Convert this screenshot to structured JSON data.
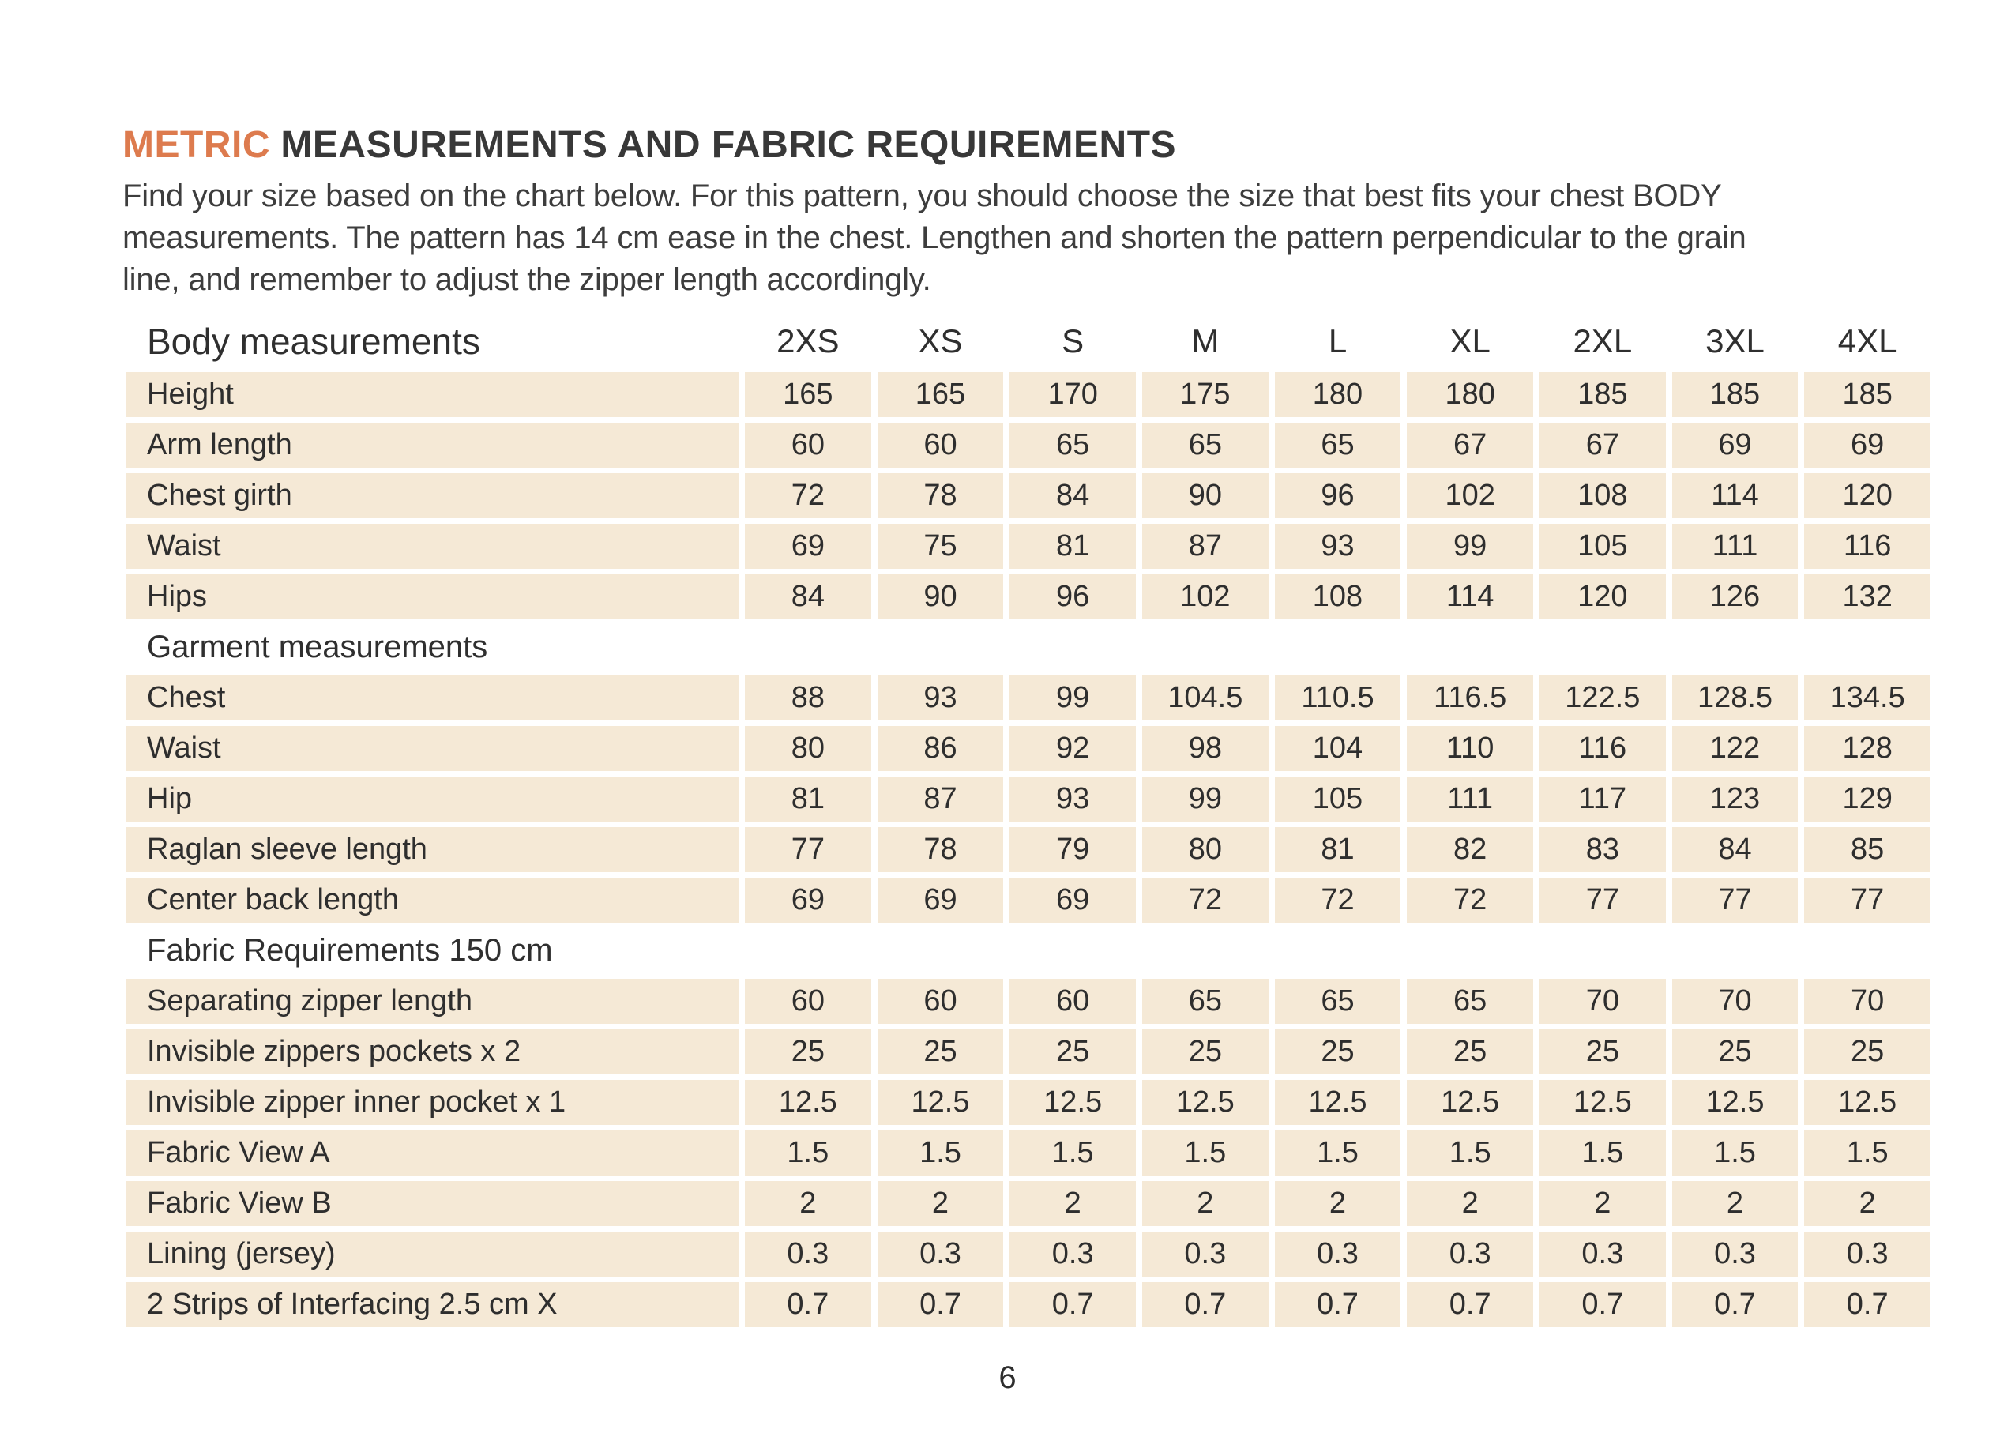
{
  "colors": {
    "accent_orange": "#DD7B4E",
    "row_beige": "#F5E9D6",
    "text_dark": "#333333"
  },
  "header": {
    "title_highlight": "METRIC",
    "title_rest": "MEASUREMENTS AND FABRIC REQUIREMENTS"
  },
  "intro": {
    "lines": [
      "Find your size based on the chart below. For this pattern, you should choose the size that best fits your chest BODY",
      "measurements. The pattern has 14 cm ease in the chest. Lengthen and shorten the pattern perpendicular to the grain",
      "line, and remember to adjust the zipper length accordingly."
    ]
  },
  "table": {
    "header_label": "Body measurements",
    "sizes": [
      "2XS",
      "XS",
      "S",
      "M",
      "L",
      "XL",
      "2XL",
      "3XL",
      "4XL"
    ],
    "groups": [
      {
        "heading": "",
        "rows": [
          {
            "label": "Height",
            "values": [
              "165",
              "165",
              "170",
              "175",
              "180",
              "180",
              "185",
              "185",
              "185"
            ]
          },
          {
            "label": "Arm length",
            "values": [
              "60",
              "60",
              "65",
              "65",
              "65",
              "67",
              "67",
              "69",
              "69"
            ]
          },
          {
            "label": "Chest girth",
            "values": [
              "72",
              "78",
              "84",
              "90",
              "96",
              "102",
              "108",
              "114",
              "120"
            ]
          },
          {
            "label": "Waist",
            "values": [
              "69",
              "75",
              "81",
              "87",
              "93",
              "99",
              "105",
              "111",
              "116"
            ]
          },
          {
            "label": "Hips",
            "values": [
              "84",
              "90",
              "96",
              "102",
              "108",
              "114",
              "120",
              "126",
              "132"
            ]
          }
        ]
      },
      {
        "heading": "Garment measurements",
        "rows": [
          {
            "label": "Chest",
            "values": [
              "88",
              "93",
              "99",
              "104.5",
              "110.5",
              "116.5",
              "122.5",
              "128.5",
              "134.5"
            ]
          },
          {
            "label": "Waist",
            "values": [
              "80",
              "86",
              "92",
              "98",
              "104",
              "110",
              "116",
              "122",
              "128"
            ]
          },
          {
            "label": "Hip",
            "values": [
              "81",
              "87",
              "93",
              "99",
              "105",
              "111",
              "117",
              "123",
              "129"
            ]
          },
          {
            "label": "Raglan sleeve length",
            "values": [
              "77",
              "78",
              "79",
              "80",
              "81",
              "82",
              "83",
              "84",
              "85"
            ]
          },
          {
            "label": "Center back length",
            "values": [
              "69",
              "69",
              "69",
              "72",
              "72",
              "72",
              "77",
              "77",
              "77"
            ]
          }
        ]
      },
      {
        "heading": "Fabric Requirements 150 cm",
        "rows": [
          {
            "label": "Separating zipper length",
            "values": [
              "60",
              "60",
              "60",
              "65",
              "65",
              "65",
              "70",
              "70",
              "70"
            ]
          },
          {
            "label": "Invisible zippers pockets x 2",
            "values": [
              "25",
              "25",
              "25",
              "25",
              "25",
              "25",
              "25",
              "25",
              "25"
            ]
          },
          {
            "label": "Invisible zipper inner pocket x 1",
            "values": [
              "12.5",
              "12.5",
              "12.5",
              "12.5",
              "12.5",
              "12.5",
              "12.5",
              "12.5",
              "12.5"
            ]
          },
          {
            "label": "Fabric View A",
            "values": [
              "1.5",
              "1.5",
              "1.5",
              "1.5",
              "1.5",
              "1.5",
              "1.5",
              "1.5",
              "1.5"
            ]
          },
          {
            "label": "Fabric View B",
            "values": [
              "2",
              "2",
              "2",
              "2",
              "2",
              "2",
              "2",
              "2",
              "2"
            ]
          },
          {
            "label": "Lining (jersey)",
            "values": [
              "0.3",
              "0.3",
              "0.3",
              "0.3",
              "0.3",
              "0.3",
              "0.3",
              "0.3",
              "0.3"
            ]
          },
          {
            "label": "2 Strips of Interfacing 2.5 cm X",
            "values": [
              "0.7",
              "0.7",
              "0.7",
              "0.7",
              "0.7",
              "0.7",
              "0.7",
              "0.7",
              "0.7"
            ]
          }
        ]
      }
    ]
  },
  "footer": {
    "page_number": "6"
  }
}
